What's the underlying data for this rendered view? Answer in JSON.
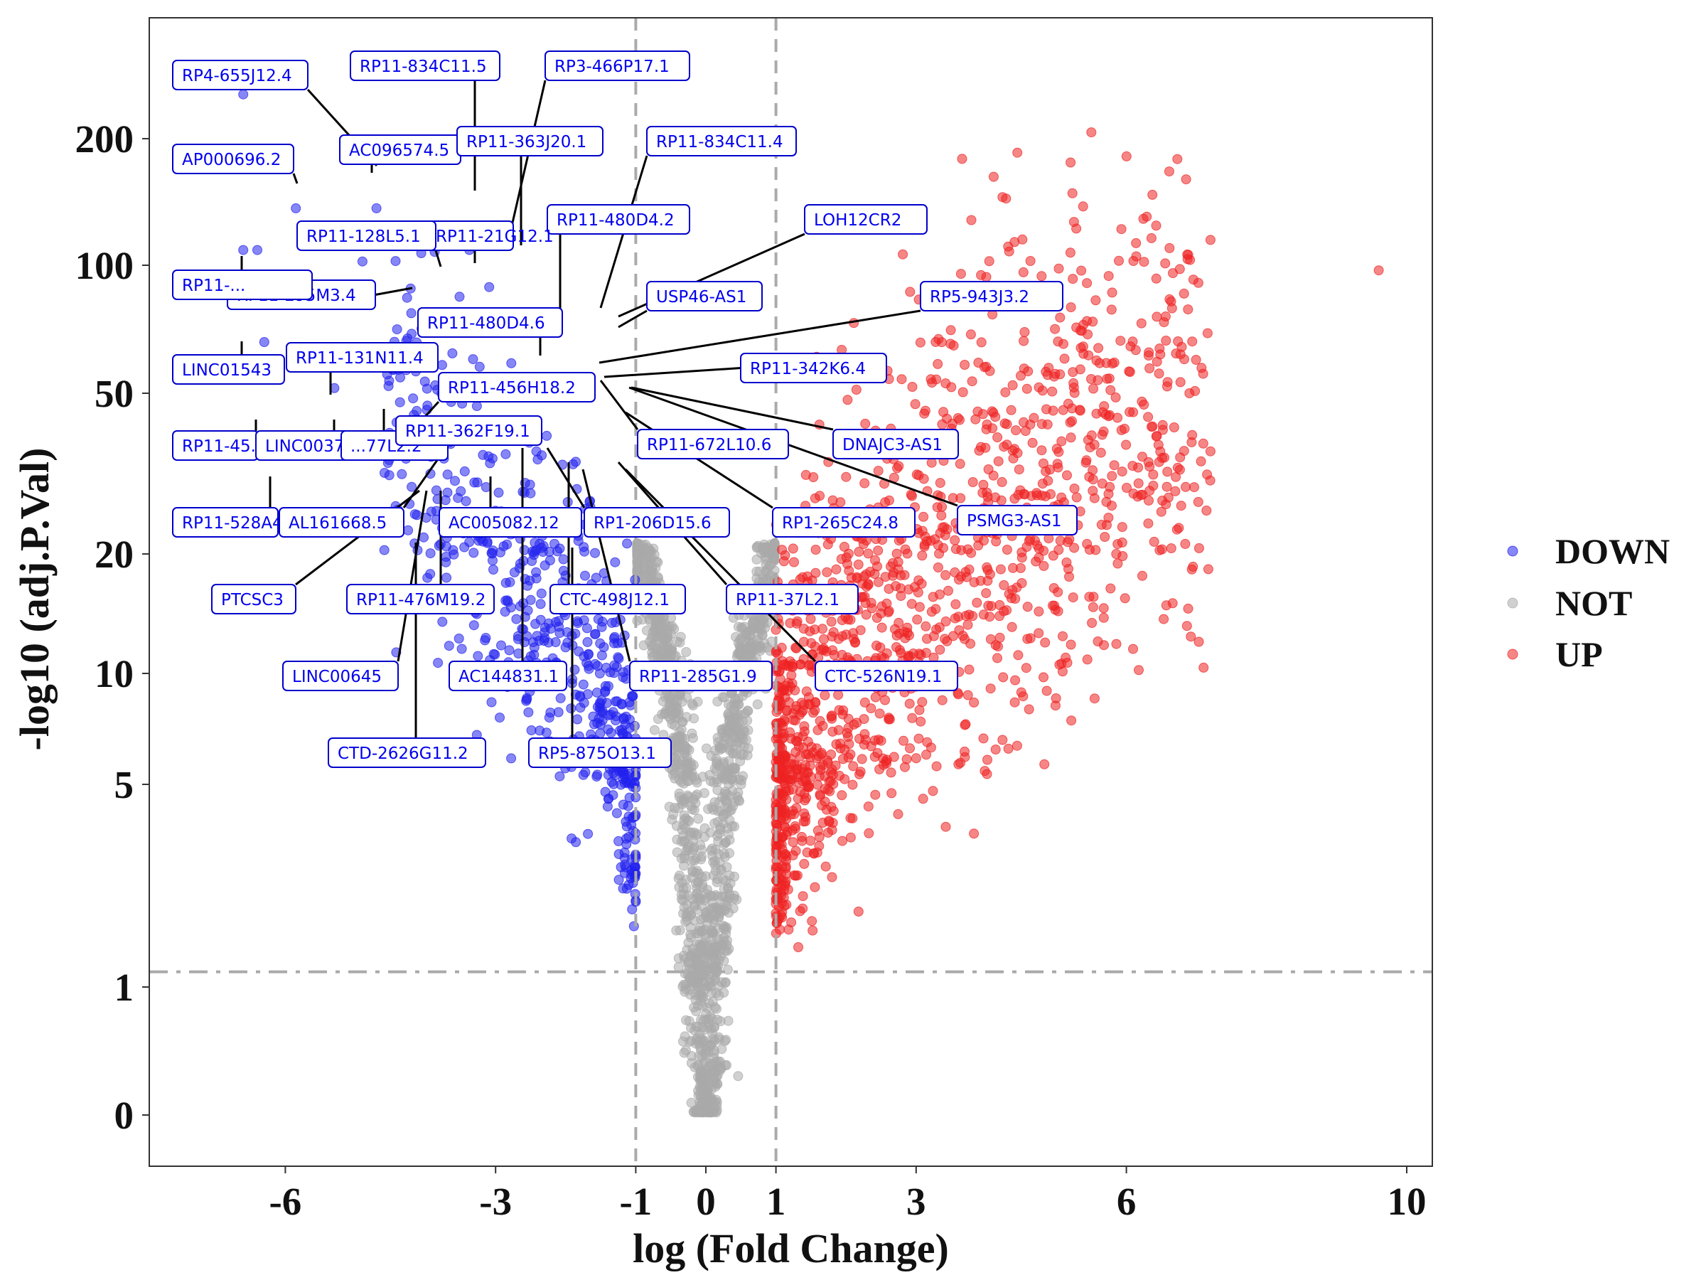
{
  "chart_data": {
    "type": "scatter",
    "title": "",
    "xlabel": "log (Fold Change)",
    "ylabel": "-log10 (adj.P.Val)",
    "xlim": [
      -7.95,
      10.4
    ],
    "xticks": [
      -6,
      -3,
      -1,
      0,
      1,
      3,
      6,
      10
    ],
    "xtick_labels": [
      "-6",
      "-3",
      "-1",
      "0",
      "1",
      "3",
      "6",
      "10"
    ],
    "y_scale": "transformed (axis compressed toward top)",
    "yticks": [
      0,
      1,
      5,
      10,
      20,
      50,
      100,
      200
    ],
    "ytick_labels": [
      "0",
      "1",
      "5",
      "10",
      "20",
      "50",
      "100",
      "200"
    ],
    "thresholds": {
      "logFC": [
        -1,
        1
      ],
      "adj_p_neglog10": 1.3
    },
    "grid": false,
    "legend_position": "right",
    "colors": {
      "DOWN": "#2222ee",
      "NOT": "#aaaaaa",
      "UP": "#ee2222",
      "label_border": "#0000cc",
      "label_text": "#0000ee",
      "threshold_line": "#aaaaaa"
    },
    "series": [
      {
        "name": "DOWN",
        "note": "approx. 600 points with logFC < -1, adj.P.Val significant"
      },
      {
        "name": "NOT",
        "note": "approx. 1500 points with |logFC| < 1"
      },
      {
        "name": "UP",
        "note": "approx. 1400 points with logFC > 1, adj.P.Val significant"
      }
    ],
    "labeled_genes": [
      {
        "label": "RP4-655J12.4",
        "x": -6.6,
        "y": 235
      },
      {
        "label": "AP000696.2",
        "x": -5.85,
        "y": 155
      },
      {
        "label": "AC096574.5",
        "x": -4.7,
        "y": 145
      },
      {
        "label": "RP11-834C11.5",
        "x": -3.55,
        "y": 140
      },
      {
        "label": "RP11-363J20.1",
        "x": -2.6,
        "y": 115
      },
      {
        "label": "RP3-466P17.1",
        "x": -2.1,
        "y": 140
      },
      {
        "label": "RP11-834C11.4",
        "x": -1.65,
        "y": 64
      },
      {
        "label": "RP11-480D4.2",
        "x": -2.3,
        "y": 110
      },
      {
        "label": "RP11-21G12.1",
        "x": -3.3,
        "y": 100
      },
      {
        "label": "RP11-128L5.1",
        "x": -3.9,
        "y": 100
      },
      {
        "label": "RP11-295M3.4",
        "x": -4.5,
        "y": 90
      },
      {
        "label": "RP11-...",
        "x": -6.6,
        "y": 100
      },
      {
        "label": "LINC01543",
        "x": -6.55,
        "y": 62
      },
      {
        "label": "RP11-131N11.4",
        "x": -3.5,
        "y": 57
      },
      {
        "label": "RP11-480D4.6",
        "x": -2.35,
        "y": 59
      },
      {
        "label": "USP46-AS1",
        "x": -1.3,
        "y": 70
      },
      {
        "label": "LOH12CR2",
        "x": -1.25,
        "y": 68
      },
      {
        "label": "RP5-943J3.2",
        "x": -1.45,
        "y": 57
      },
      {
        "label": "RP11-342K6.4",
        "x": -1.5,
        "y": 53
      },
      {
        "label": "RP11-456H18.2",
        "x": -3.0,
        "y": 46
      },
      {
        "label": "RP11-45...",
        "x": -5.8,
        "y": 44
      },
      {
        "label": "LINC00379",
        "x": -4.4,
        "y": 50
      },
      {
        "label": "...77L2.2",
        "x": -4.3,
        "y": 45
      },
      {
        "label": "RP11-362F19.1",
        "x": -3.6,
        "y": 33
      },
      {
        "label": "RP11-672L10.6",
        "x": -1.6,
        "y": 48
      },
      {
        "label": "DNAJC3-AS1",
        "x": -1.05,
        "y": 48
      },
      {
        "label": "PSMG3-AS1",
        "x": -1.05,
        "y": 50
      },
      {
        "label": "RP11-528A4...",
        "x": -5.5,
        "y": 40
      },
      {
        "label": "AL161668.5",
        "x": -3.55,
        "y": 35
      },
      {
        "label": "AC005082.12",
        "x": -2.95,
        "y": 34
      },
      {
        "label": "RP1-206D15.6",
        "x": -2.2,
        "y": 38
      },
      {
        "label": "RP1-265C24.8",
        "x": -1.5,
        "y": 38
      },
      {
        "label": "PTCSC3",
        "x": -4.2,
        "y": 28
      },
      {
        "label": "RP11-476M19.2",
        "x": -3.7,
        "y": 26
      },
      {
        "label": "CTC-498J12.1",
        "x": -2.35,
        "y": 22
      },
      {
        "label": "RP11-37L2.1",
        "x": -1.9,
        "y": 24
      },
      {
        "label": "LINC00645",
        "x": -4.2,
        "y": 23
      },
      {
        "label": "AC144831.1",
        "x": -2.8,
        "y": 33
      },
      {
        "label": "RP11-285G1.9",
        "x": -2.3,
        "y": 25
      },
      {
        "label": "CTC-526N19.1",
        "x": -1.6,
        "y": 23
      },
      {
        "label": "CTD-2626G11.2",
        "x": -4.1,
        "y": 24
      },
      {
        "label": "RP5-875O13.1",
        "x": -2.45,
        "y": 23
      }
    ]
  }
}
